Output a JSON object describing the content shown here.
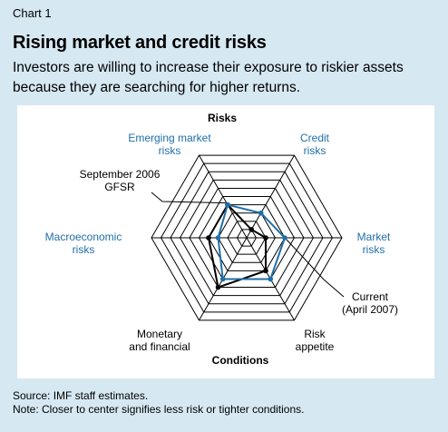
{
  "header": {
    "chart_number": "Chart 1",
    "title": "Rising market and credit risks",
    "subtitle": "Investors are willing to increase their exposure to riskier assets because they are searching for higher returns."
  },
  "chart_data": {
    "type": "radar",
    "group_labels": {
      "top": "Risks",
      "bottom": "Conditions"
    },
    "axes": [
      "Credit risks",
      "Market risks",
      "Risk appetite",
      "Monetary and financial",
      "Macroeconomic risks",
      "Emerging market risks"
    ],
    "rings": 10,
    "series": [
      {
        "name": "Current (April 2007)",
        "color": "#1f6fa8",
        "values": [
          3,
          4,
          5,
          5,
          3,
          4
        ]
      },
      {
        "name": "September 2006 GFSR",
        "color": "#000000",
        "values": [
          1,
          2,
          4,
          6,
          4,
          4
        ]
      }
    ],
    "annotations": {
      "current": [
        "Current",
        "(April 2007)"
      ],
      "sept": [
        "September 2006",
        "GFSR"
      ]
    }
  },
  "labels": {
    "emerging": [
      "Emerging market",
      "risks"
    ],
    "credit": [
      "Credit",
      "risks"
    ],
    "macro": [
      "Macroeconomic",
      "risks"
    ],
    "market": [
      "Market",
      "risks"
    ],
    "monetary": [
      "Monetary",
      "and financial"
    ],
    "appetite": [
      "Risk",
      "appetite"
    ]
  },
  "footer": {
    "source": "Source: IMF staff estimates.",
    "note": "Note: Closer to center signifies less risk or tighter conditions."
  }
}
